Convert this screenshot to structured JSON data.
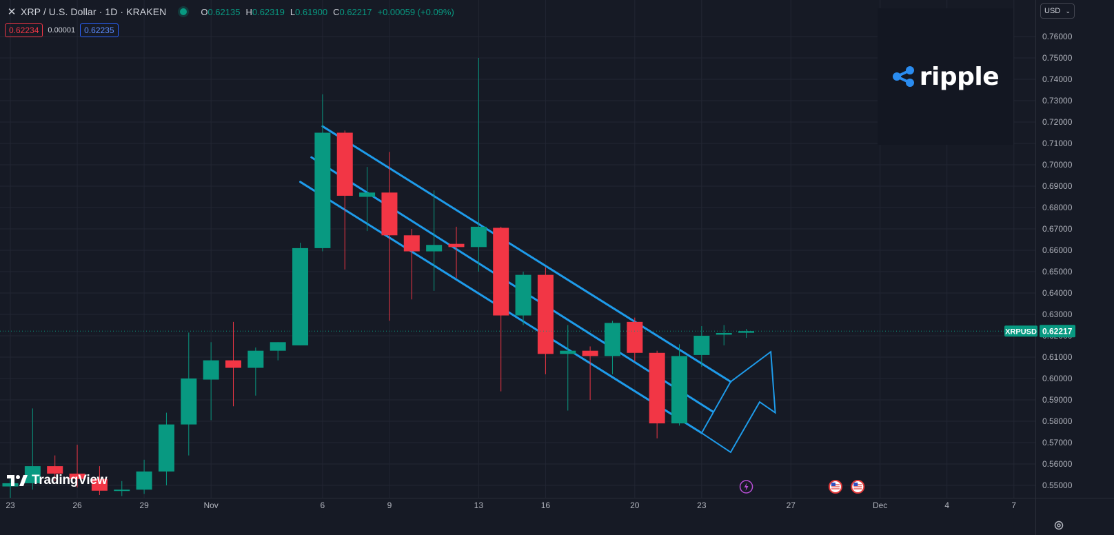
{
  "header": {
    "symbol_title": "XRP / U.S. Dollar · 1D · KRAKEN",
    "ohlc": {
      "o_label": "O",
      "o_value": "0.62135",
      "h_label": "H",
      "h_value": "0.62319",
      "l_label": "L",
      "l_value": "0.61900",
      "c_label": "C",
      "c_value": "0.62217",
      "change": "+0.00059 (+0.09%)"
    },
    "bid": "0.62234",
    "spread": "0.00001",
    "ask": "0.62235",
    "currency": "USD"
  },
  "logos": {
    "brand_word": "ripple",
    "brand_icon": "ripple-icon",
    "watermark_word": "TradingView",
    "watermark_icon": "tradingview-icon"
  },
  "icons": {
    "settings": "gear-icon",
    "close": "close-icon",
    "event_dividend": "lightning-icon",
    "event_us": "us-flag-icon"
  },
  "colors": {
    "background": "#161a25",
    "up": "#089981",
    "down": "#f23645",
    "channel": "#1e9bea",
    "grid": "#222633",
    "axis_text": "#b2b5be",
    "price_label": "#089981"
  },
  "chart_data": {
    "type": "candlestick",
    "symbol": "XRPUSD",
    "title": "XRP / U.S. Dollar · 1D · KRAKEN",
    "last_price": 0.62217,
    "last_price_label": "0.62217",
    "y_range": [
      0.545,
      0.767
    ],
    "y_ticks": [
      "0.76000",
      "0.75000",
      "0.74000",
      "0.73000",
      "0.72000",
      "0.71000",
      "0.70000",
      "0.69000",
      "0.68000",
      "0.67000",
      "0.66000",
      "0.65000",
      "0.64000",
      "0.63000",
      "0.62000",
      "0.61000",
      "0.60000",
      "0.59000",
      "0.58000",
      "0.57000",
      "0.56000",
      "0.55000"
    ],
    "y_tick_values": [
      0.76,
      0.75,
      0.74,
      0.73,
      0.72,
      0.71,
      0.7,
      0.69,
      0.68,
      0.67,
      0.66,
      0.65,
      0.64,
      0.63,
      0.62,
      0.61,
      0.6,
      0.59,
      0.58,
      0.57,
      0.56,
      0.55
    ],
    "x_ticks": [
      {
        "label": "23",
        "day": 0
      },
      {
        "label": "26",
        "day": 3
      },
      {
        "label": "29",
        "day": 6
      },
      {
        "label": "Nov",
        "day": 9
      },
      {
        "label": "6",
        "day": 14
      },
      {
        "label": "9",
        "day": 17
      },
      {
        "label": "13",
        "day": 21
      },
      {
        "label": "16",
        "day": 24
      },
      {
        "label": "20",
        "day": 28
      },
      {
        "label": "23",
        "day": 31
      },
      {
        "label": "27",
        "day": 35
      },
      {
        "label": "Dec",
        "day": 39
      },
      {
        "label": "4",
        "day": 42
      },
      {
        "label": "7",
        "day": 45
      }
    ],
    "candles": [
      {
        "date": "Oct 23",
        "day": 0,
        "o": 0.5495,
        "h": 0.553,
        "l": 0.544,
        "c": 0.551
      },
      {
        "date": "Oct 24",
        "day": 1,
        "o": 0.551,
        "h": 0.586,
        "l": 0.548,
        "c": 0.559
      },
      {
        "date": "Oct 25",
        "day": 2,
        "o": 0.559,
        "h": 0.564,
        "l": 0.552,
        "c": 0.5555
      },
      {
        "date": "Oct 26",
        "day": 3,
        "o": 0.5555,
        "h": 0.569,
        "l": 0.549,
        "c": 0.553
      },
      {
        "date": "Oct 27",
        "day": 4,
        "o": 0.553,
        "h": 0.559,
        "l": 0.5455,
        "c": 0.5475
      },
      {
        "date": "Oct 28",
        "day": 5,
        "o": 0.5475,
        "h": 0.552,
        "l": 0.545,
        "c": 0.548
      },
      {
        "date": "Oct 29",
        "day": 6,
        "o": 0.548,
        "h": 0.562,
        "l": 0.546,
        "c": 0.5565
      },
      {
        "date": "Oct 30",
        "day": 7,
        "o": 0.5565,
        "h": 0.584,
        "l": 0.55,
        "c": 0.5785
      },
      {
        "date": "Oct 31",
        "day": 8,
        "o": 0.5785,
        "h": 0.6215,
        "l": 0.564,
        "c": 0.6
      },
      {
        "date": "Nov 1",
        "day": 9,
        "o": 0.5995,
        "h": 0.617,
        "l": 0.5805,
        "c": 0.6085
      },
      {
        "date": "Nov 2",
        "day": 10,
        "o": 0.6085,
        "h": 0.6265,
        "l": 0.587,
        "c": 0.605
      },
      {
        "date": "Nov 3",
        "day": 11,
        "o": 0.605,
        "h": 0.6145,
        "l": 0.592,
        "c": 0.613
      },
      {
        "date": "Nov 4",
        "day": 12,
        "o": 0.613,
        "h": 0.617,
        "l": 0.6085,
        "c": 0.617
      },
      {
        "date": "Nov 5",
        "day": 13,
        "o": 0.6155,
        "h": 0.6635,
        "l": 0.6155,
        "c": 0.661
      },
      {
        "date": "Nov 6",
        "day": 14,
        "o": 0.661,
        "h": 0.733,
        "l": 0.6595,
        "c": 0.715
      },
      {
        "date": "Nov 7",
        "day": 15,
        "o": 0.715,
        "h": 0.716,
        "l": 0.651,
        "c": 0.6855
      },
      {
        "date": "Nov 8",
        "day": 16,
        "o": 0.685,
        "h": 0.699,
        "l": 0.669,
        "c": 0.687
      },
      {
        "date": "Nov 9",
        "day": 17,
        "o": 0.687,
        "h": 0.706,
        "l": 0.627,
        "c": 0.667
      },
      {
        "date": "Nov 10",
        "day": 18,
        "o": 0.667,
        "h": 0.67,
        "l": 0.637,
        "c": 0.6595
      },
      {
        "date": "Nov 11",
        "day": 19,
        "o": 0.6595,
        "h": 0.688,
        "l": 0.641,
        "c": 0.6625
      },
      {
        "date": "Nov 12",
        "day": 20,
        "o": 0.663,
        "h": 0.671,
        "l": 0.647,
        "c": 0.6615
      },
      {
        "date": "Nov 13",
        "day": 21,
        "o": 0.6615,
        "h": 0.75,
        "l": 0.65,
        "c": 0.671
      },
      {
        "date": "Nov 14",
        "day": 22,
        "o": 0.6705,
        "h": 0.671,
        "l": 0.594,
        "c": 0.6295
      },
      {
        "date": "Nov 15",
        "day": 23,
        "o": 0.6295,
        "h": 0.65,
        "l": 0.625,
        "c": 0.6485
      },
      {
        "date": "Nov 16",
        "day": 24,
        "o": 0.6485,
        "h": 0.652,
        "l": 0.602,
        "c": 0.6115
      },
      {
        "date": "Nov 17",
        "day": 25,
        "o": 0.6115,
        "h": 0.625,
        "l": 0.585,
        "c": 0.613
      },
      {
        "date": "Nov 18",
        "day": 26,
        "o": 0.613,
        "h": 0.615,
        "l": 0.59,
        "c": 0.6105
      },
      {
        "date": "Nov 19",
        "day": 27,
        "o": 0.6105,
        "h": 0.627,
        "l": 0.602,
        "c": 0.626
      },
      {
        "date": "Nov 20",
        "day": 28,
        "o": 0.6265,
        "h": 0.6285,
        "l": 0.608,
        "c": 0.612
      },
      {
        "date": "Nov 21",
        "day": 29,
        "o": 0.612,
        "h": 0.613,
        "l": 0.572,
        "c": 0.579
      },
      {
        "date": "Nov 22",
        "day": 30,
        "o": 0.579,
        "h": 0.616,
        "l": 0.578,
        "c": 0.6105
      },
      {
        "date": "Nov 23",
        "day": 31,
        "o": 0.611,
        "h": 0.6245,
        "l": 0.6055,
        "c": 0.62
      },
      {
        "date": "Nov 24",
        "day": 32,
        "o": 0.6205,
        "h": 0.625,
        "l": 0.6155,
        "c": 0.6213
      },
      {
        "date": "Nov 25",
        "day": 33,
        "o": 0.6214,
        "h": 0.6232,
        "l": 0.619,
        "c": 0.6222
      }
    ],
    "channel_lines": [
      {
        "name": "upper",
        "from": {
          "day": 14.0,
          "price": 0.718
        },
        "to": {
          "day": 32.3,
          "price": 0.5985
        }
      },
      {
        "name": "middle",
        "from": {
          "day": 13.5,
          "price": 0.7035
        },
        "to": {
          "day": 31.5,
          "price": 0.5845
        }
      },
      {
        "name": "lower",
        "from": {
          "day": 13.0,
          "price": 0.692
        },
        "to": {
          "day": 31.0,
          "price": 0.5745
        }
      }
    ],
    "projection_arrow": {
      "direction": "up",
      "points": [
        {
          "day": 32.3,
          "price": 0.5985
        },
        {
          "day": 34.1,
          "price": 0.6125
        },
        {
          "day": 34.3,
          "price": 0.584
        },
        {
          "day": 33.6,
          "price": 0.589
        },
        {
          "day": 32.3,
          "price": 0.5655
        },
        {
          "day": 31.0,
          "price": 0.5745
        }
      ]
    },
    "events": [
      {
        "type": "lightning",
        "day": 33
      },
      {
        "type": "us-flag",
        "day": 37
      },
      {
        "type": "us-flag",
        "day": 38
      }
    ],
    "grid": true,
    "legend": "top-left"
  }
}
